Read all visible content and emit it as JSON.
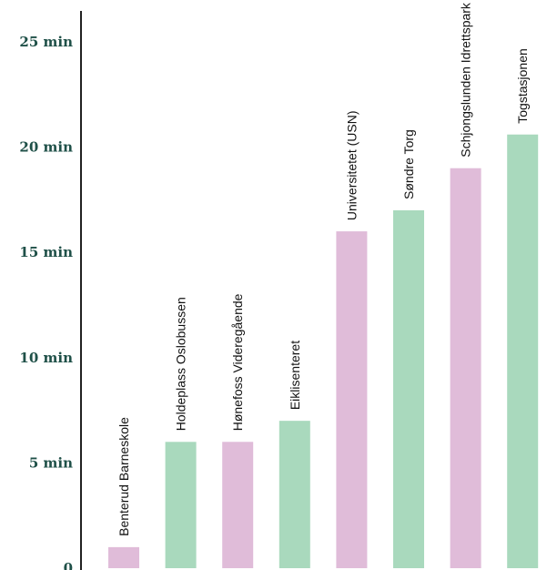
{
  "chart_data": {
    "type": "bar",
    "categories": [
      "Benterud Barneskole",
      "Holdeplass Oslobussen",
      "Hønefoss Videregående",
      "Eiklisenteret",
      "Universitetet (USN)",
      "Søndre Torg",
      "Schjongslunden Idrettspark",
      "Togstasjonen"
    ],
    "values": [
      1,
      6,
      6,
      7,
      16,
      17,
      19,
      20.6
    ],
    "ylim": [
      0,
      25
    ],
    "yticks": [
      {
        "value": 0,
        "label": "0"
      },
      {
        "value": 5,
        "label": "5 min"
      },
      {
        "value": 10,
        "label": "10 min"
      },
      {
        "value": 15,
        "label": "15 min"
      },
      {
        "value": 20,
        "label": "20 min"
      },
      {
        "value": 25,
        "label": "25 min"
      }
    ],
    "colors": [
      "#e0bcd9",
      "#a9d9bd",
      "#e0bcd9",
      "#a9d9bd",
      "#e0bcd9",
      "#a9d9bd",
      "#e0bcd9",
      "#a9d9bd"
    ],
    "axis_color": "#222222",
    "tick_label_color": "#1f5048",
    "grid": false,
    "legend": "none",
    "title": "",
    "xlabel": "",
    "ylabel": ""
  }
}
